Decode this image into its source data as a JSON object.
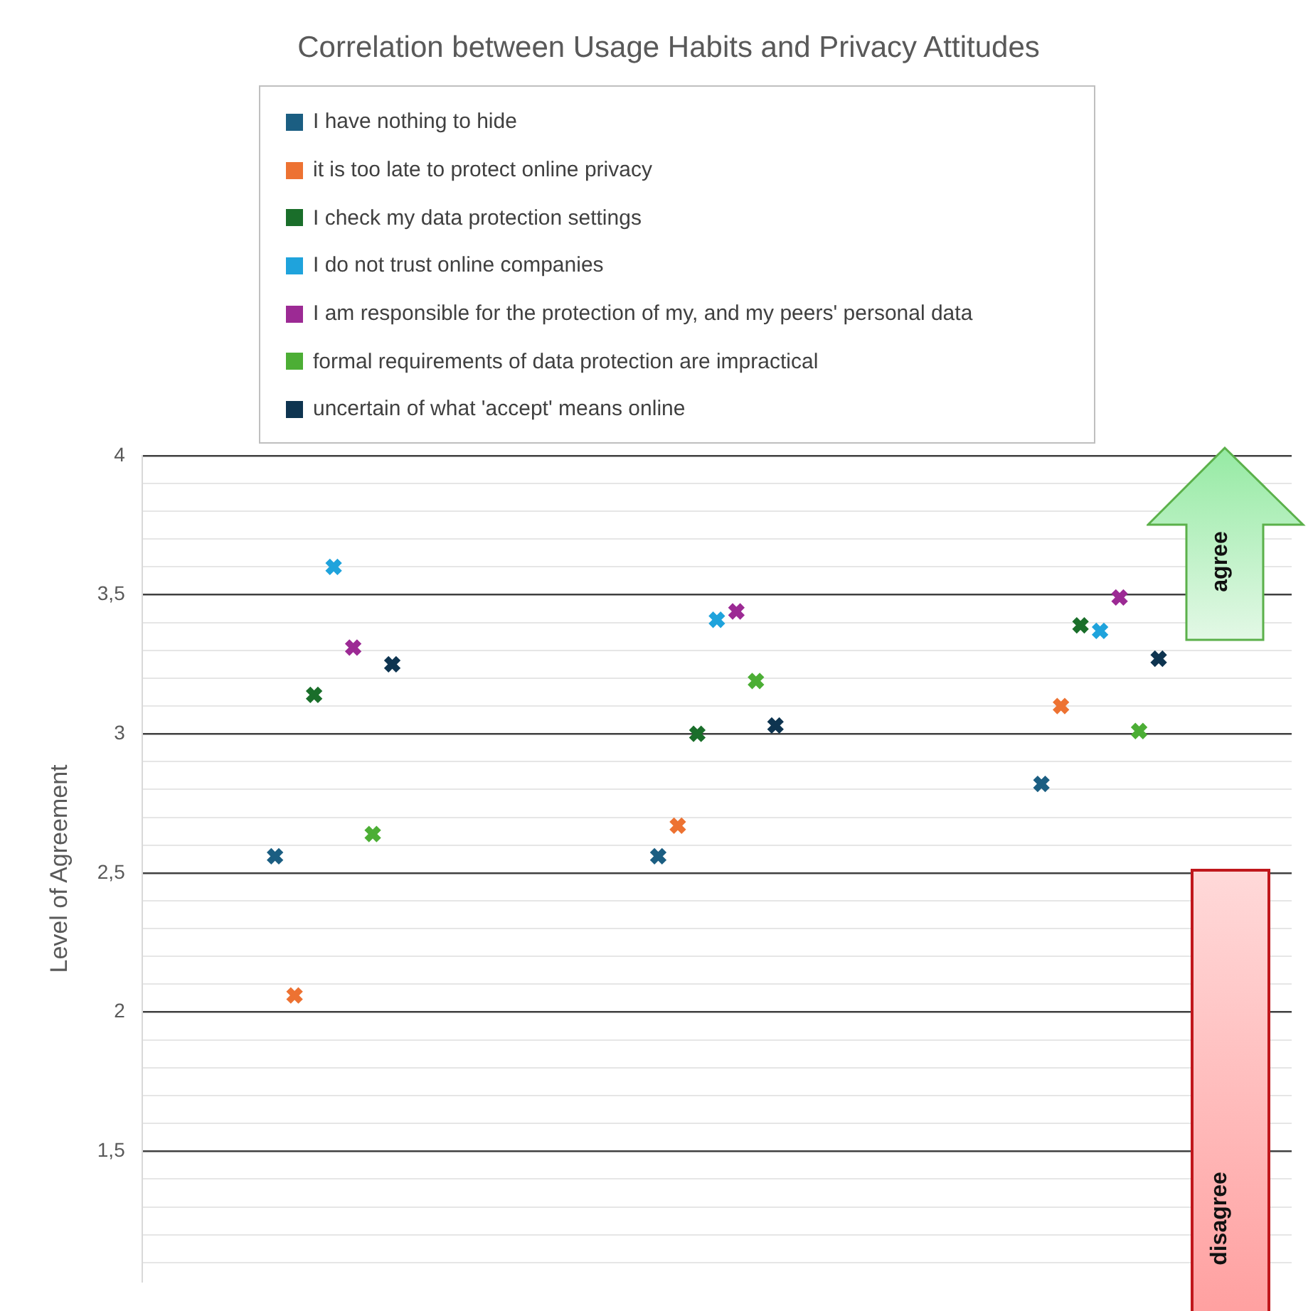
{
  "chart_data": {
    "type": "scatter",
    "title": "Correlation between Usage Habits and Privacy Attitudes",
    "ylabel": "Level of Agreement",
    "categories": [
      null,
      null,
      null
    ],
    "series": [
      {
        "name": "I have nothing to hide",
        "color": "#1b5e82",
        "values": [
          2.56,
          2.56,
          2.82
        ]
      },
      {
        "name": "it is too late to protect online privacy",
        "color": "#ed7232",
        "values": [
          2.06,
          2.67,
          3.1
        ]
      },
      {
        "name": "I check my data protection settings",
        "color": "#1a6e2a",
        "values": [
          3.14,
          3.0,
          3.39
        ]
      },
      {
        "name": "I do not trust online companies",
        "color": "#1fa3dc",
        "values": [
          3.6,
          3.41,
          3.37
        ]
      },
      {
        "name": "I am responsible for the protection of my, and my peers' personal data",
        "color": "#9c2a94",
        "values": [
          3.31,
          3.44,
          3.49
        ]
      },
      {
        "name": "formal requirements of data protection are impractical",
        "color": "#4cae35",
        "values": [
          2.64,
          3.19,
          3.01
        ]
      },
      {
        "name": "uncertain of what 'accept' means online",
        "color": "#0e3450",
        "values": [
          3.25,
          3.03,
          3.27
        ]
      }
    ],
    "ylim": [
      1.03,
      4
    ],
    "yticks": [
      {
        "value": 1.1,
        "label": null
      },
      {
        "value": 1.2,
        "label": null
      },
      {
        "value": 1.3,
        "label": null
      },
      {
        "value": 1.4,
        "label": null
      },
      {
        "value": 1.5,
        "label": "1,5"
      },
      {
        "value": 1.6,
        "label": null
      },
      {
        "value": 1.7,
        "label": null
      },
      {
        "value": 1.8,
        "label": null
      },
      {
        "value": 1.9,
        "label": null
      },
      2,
      {
        "value": 2.1,
        "label": null
      },
      {
        "value": 2.2,
        "label": null
      },
      {
        "value": 2.3,
        "label": null
      },
      {
        "value": 2.4,
        "label": null
      },
      {
        "value": 2.5,
        "label": "2,5"
      },
      {
        "value": 2.6,
        "label": null
      },
      {
        "value": 2.7,
        "label": null
      },
      {
        "value": 2.8,
        "label": null
      },
      {
        "value": 2.9,
        "label": null
      },
      3,
      {
        "value": 3.1,
        "label": null
      },
      {
        "value": 3.2,
        "label": null
      },
      {
        "value": 3.3,
        "label": null
      },
      {
        "value": 3.4,
        "label": null
      },
      {
        "value": 3.5,
        "label": "3,5"
      },
      {
        "value": 3.6,
        "label": null
      },
      {
        "value": 3.7,
        "label": null
      },
      {
        "value": 3.8,
        "label": null
      },
      {
        "value": 3.9,
        "label": null
      },
      4
    ],
    "grid": "y",
    "legend": "top",
    "marker": "cross",
    "tick_labels": "y",
    "annotations": [
      "agree",
      "disagree"
    ]
  }
}
